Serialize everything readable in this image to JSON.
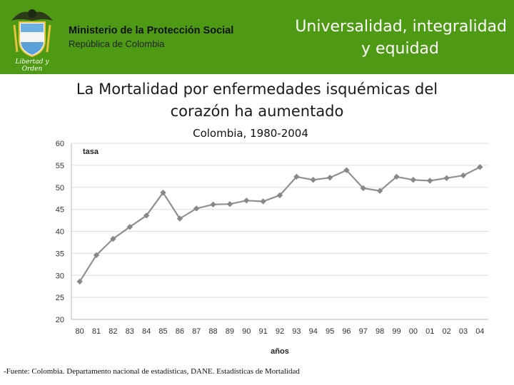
{
  "header": {
    "ministry": "Ministerio de la Protección Social",
    "republic": "República de Colombia",
    "slogan_line1": "Universalidad, integralidad",
    "slogan_line2": "y equidad",
    "logo_caption": "Libertad y Orden",
    "accent_color": "#4e9a14"
  },
  "slide": {
    "title_line1": "La Mortalidad por enfermedades isquémicas del",
    "title_line2": "corazón ha aumentado"
  },
  "footer": {
    "source": "-Fuente: Colombia. Departamento nacional de estadísticas, DANE. Estadísticas de Mortalidad"
  },
  "chart_data": {
    "type": "line",
    "title": "Colombia, 1980-2004",
    "ylabel": "tasa",
    "xlabel": "años",
    "ylim": [
      20,
      60
    ],
    "yticks": [
      20,
      25,
      30,
      35,
      40,
      45,
      50,
      55,
      60
    ],
    "grid": true,
    "categories": [
      "80",
      "81",
      "82",
      "83",
      "84",
      "85",
      "86",
      "87",
      "88",
      "89",
      "90",
      "91",
      "92",
      "93",
      "94",
      "95",
      "96",
      "97",
      "98",
      "99",
      "00",
      "01",
      "02",
      "03",
      "04"
    ],
    "series": [
      {
        "name": "tasa",
        "color": "#909090",
        "values": [
          28.6,
          34.6,
          38.3,
          41.0,
          43.6,
          48.8,
          42.9,
          45.2,
          46.1,
          46.2,
          47.0,
          46.8,
          48.2,
          52.4,
          51.7,
          52.2,
          53.9,
          49.8,
          49.2,
          52.4,
          51.7,
          51.5,
          52.1,
          52.7,
          54.6
        ]
      }
    ]
  }
}
